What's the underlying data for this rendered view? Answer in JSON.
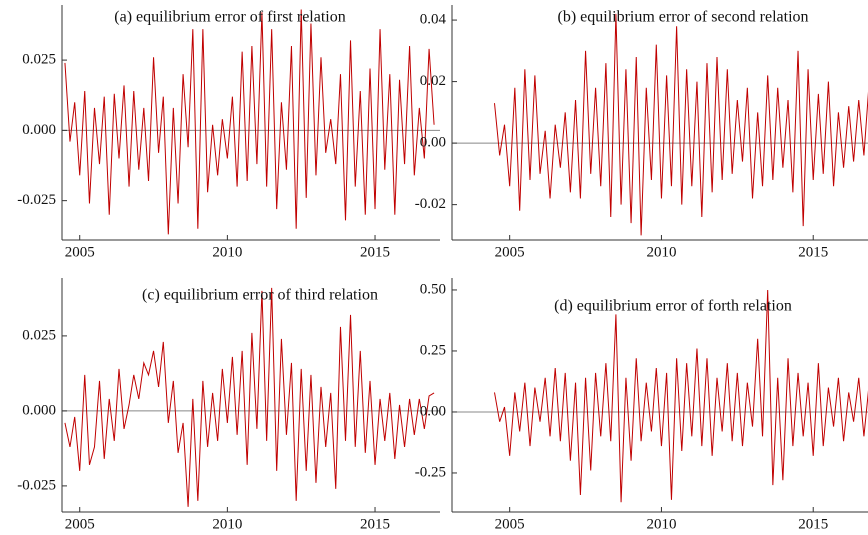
{
  "chart_data": [
    {
      "type": "line",
      "title": "(a) equilibrium error of first relation",
      "color": "#c00000",
      "zero_line": true,
      "xlim": [
        2004.4,
        2017.2
      ],
      "xticks": [
        2005,
        2010,
        2015
      ],
      "ylim": [
        -0.039,
        0.0446
      ],
      "yticks": [
        {
          "value": -0.025,
          "label": "-0.025"
        },
        {
          "value": 0,
          "label": "0.000"
        },
        {
          "value": 0.025,
          "label": "0.025"
        }
      ],
      "x": [
        2004.5,
        2004.67,
        2004.83,
        2005,
        2005.17,
        2005.33,
        2005.5,
        2005.67,
        2005.83,
        2006,
        2006.17,
        2006.33,
        2006.5,
        2006.67,
        2006.83,
        2007,
        2007.17,
        2007.33,
        2007.5,
        2007.67,
        2007.83,
        2008,
        2008.17,
        2008.33,
        2008.5,
        2008.67,
        2008.83,
        2009,
        2009.17,
        2009.33,
        2009.5,
        2009.67,
        2009.83,
        2010,
        2010.17,
        2010.33,
        2010.5,
        2010.67,
        2010.83,
        2011,
        2011.17,
        2011.33,
        2011.5,
        2011.67,
        2011.83,
        2012,
        2012.17,
        2012.33,
        2012.5,
        2012.67,
        2012.83,
        2013,
        2013.17,
        2013.33,
        2013.5,
        2013.67,
        2013.83,
        2014,
        2014.17,
        2014.33,
        2014.5,
        2014.67,
        2014.83,
        2015,
        2015.17,
        2015.33,
        2015.5,
        2015.67,
        2015.83,
        2016,
        2016.17,
        2016.33,
        2016.5,
        2016.67,
        2016.83,
        2017
      ],
      "values": [
        0.024,
        -0.004,
        0.01,
        -0.016,
        0.014,
        -0.026,
        0.008,
        -0.012,
        0.012,
        -0.03,
        0.013,
        -0.01,
        0.016,
        -0.02,
        0.014,
        -0.014,
        0.008,
        -0.018,
        0.026,
        -0.008,
        0.012,
        -0.037,
        0.008,
        -0.026,
        0.02,
        -0.006,
        0.036,
        -0.035,
        0.036,
        -0.022,
        0.002,
        -0.016,
        0.004,
        -0.01,
        0.012,
        -0.02,
        0.028,
        -0.018,
        0.03,
        -0.012,
        0.042,
        -0.02,
        0.036,
        -0.028,
        0.01,
        -0.014,
        0.03,
        -0.035,
        0.043,
        -0.024,
        0.038,
        -0.016,
        0.026,
        -0.008,
        0.004,
        -0.012,
        0.02,
        -0.032,
        0.032,
        -0.02,
        0.014,
        -0.03,
        0.022,
        -0.028,
        0.036,
        -0.014,
        0.02,
        -0.03,
        0.018,
        -0.012,
        0.03,
        -0.016,
        0.008,
        -0.01,
        0.029,
        0.002
      ]
    },
    {
      "type": "line",
      "title": "(b) equilibrium error of second relation",
      "color": "#c00000",
      "zero_line": true,
      "xlim": [
        2003.1,
        2017.2
      ],
      "xticks": [
        2005,
        2010,
        2015
      ],
      "ylim": [
        -0.0315,
        0.0449
      ],
      "yticks": [
        {
          "value": -0.02,
          "label": "-0.02"
        },
        {
          "value": 0,
          "label": "0.00"
        },
        {
          "value": 0.02,
          "label": "0.02"
        },
        {
          "value": 0.04,
          "label": "0.04"
        }
      ],
      "x": [
        2004.5,
        2004.67,
        2004.83,
        2005,
        2005.17,
        2005.33,
        2005.5,
        2005.67,
        2005.83,
        2006,
        2006.17,
        2006.33,
        2006.5,
        2006.67,
        2006.83,
        2007,
        2007.17,
        2007.33,
        2007.5,
        2007.67,
        2007.83,
        2008,
        2008.17,
        2008.33,
        2008.5,
        2008.67,
        2008.83,
        2009,
        2009.17,
        2009.33,
        2009.5,
        2009.67,
        2009.83,
        2010,
        2010.17,
        2010.33,
        2010.5,
        2010.67,
        2010.83,
        2011,
        2011.17,
        2011.33,
        2011.5,
        2011.67,
        2011.83,
        2012,
        2012.17,
        2012.33,
        2012.5,
        2012.67,
        2012.83,
        2013,
        2013.17,
        2013.33,
        2013.5,
        2013.67,
        2013.83,
        2014,
        2014.17,
        2014.33,
        2014.5,
        2014.67,
        2014.83,
        2015,
        2015.17,
        2015.33,
        2015.5,
        2015.67,
        2015.83,
        2016,
        2016.17,
        2016.33,
        2016.5,
        2016.67,
        2016.83,
        2017
      ],
      "values": [
        0.013,
        -0.004,
        0.006,
        -0.014,
        0.018,
        -0.022,
        0.024,
        -0.012,
        0.022,
        -0.01,
        0.004,
        -0.018,
        0.006,
        -0.008,
        0.01,
        -0.016,
        0.014,
        -0.018,
        0.03,
        -0.01,
        0.018,
        -0.014,
        0.026,
        -0.024,
        0.042,
        -0.02,
        0.024,
        -0.026,
        0.028,
        -0.03,
        0.018,
        -0.012,
        0.032,
        -0.018,
        0.022,
        -0.014,
        0.038,
        -0.02,
        0.024,
        -0.014,
        0.02,
        -0.024,
        0.026,
        -0.016,
        0.028,
        -0.012,
        0.024,
        -0.01,
        0.014,
        -0.006,
        0.018,
        -0.018,
        0.01,
        -0.014,
        0.022,
        -0.012,
        0.018,
        -0.008,
        0.014,
        -0.016,
        0.03,
        -0.027,
        0.024,
        -0.012,
        0.016,
        -0.01,
        0.02,
        -0.014,
        0.01,
        -0.008,
        0.012,
        -0.006,
        0.014,
        -0.004,
        0.018,
        0.002
      ]
    },
    {
      "type": "line",
      "title": "(c) equilibrium error of third relation",
      "color": "#c00000",
      "zero_line": true,
      "xlim": [
        2004.4,
        2017.2
      ],
      "xticks": [
        2005,
        2010,
        2015
      ],
      "ylim": [
        -0.0337,
        0.0443
      ],
      "yticks": [
        {
          "value": -0.025,
          "label": "-0.025"
        },
        {
          "value": 0,
          "label": "0.000"
        },
        {
          "value": 0.025,
          "label": "0.025"
        }
      ],
      "x": [
        2004.5,
        2004.67,
        2004.83,
        2005,
        2005.17,
        2005.33,
        2005.5,
        2005.67,
        2005.83,
        2006,
        2006.17,
        2006.33,
        2006.5,
        2006.67,
        2006.83,
        2007,
        2007.17,
        2007.33,
        2007.5,
        2007.67,
        2007.83,
        2008,
        2008.17,
        2008.33,
        2008.5,
        2008.67,
        2008.83,
        2009,
        2009.17,
        2009.33,
        2009.5,
        2009.67,
        2009.83,
        2010,
        2010.17,
        2010.33,
        2010.5,
        2010.67,
        2010.83,
        2011,
        2011.17,
        2011.33,
        2011.5,
        2011.67,
        2011.83,
        2012,
        2012.17,
        2012.33,
        2012.5,
        2012.67,
        2012.83,
        2013,
        2013.17,
        2013.33,
        2013.5,
        2013.67,
        2013.83,
        2014,
        2014.17,
        2014.33,
        2014.5,
        2014.67,
        2014.83,
        2015,
        2015.17,
        2015.33,
        2015.5,
        2015.67,
        2015.83,
        2016,
        2016.17,
        2016.33,
        2016.5,
        2016.67,
        2016.83,
        2017
      ],
      "values": [
        -0.004,
        -0.012,
        -0.002,
        -0.02,
        0.012,
        -0.018,
        -0.012,
        0.01,
        -0.016,
        0.004,
        -0.01,
        0.014,
        -0.006,
        0.002,
        0.012,
        0.004,
        0.016,
        0.012,
        0.02,
        0.008,
        0.023,
        -0.004,
        0.01,
        -0.014,
        -0.004,
        -0.032,
        0.004,
        -0.03,
        0.01,
        -0.012,
        0.006,
        -0.01,
        0.014,
        -0.004,
        0.018,
        -0.008,
        0.02,
        -0.018,
        0.026,
        -0.006,
        0.04,
        -0.01,
        0.041,
        -0.02,
        0.024,
        -0.008,
        0.016,
        -0.03,
        0.014,
        -0.02,
        0.012,
        -0.024,
        0.008,
        -0.012,
        0.006,
        -0.026,
        0.028,
        -0.01,
        0.032,
        -0.012,
        0.02,
        -0.014,
        0.01,
        -0.018,
        0.004,
        -0.01,
        0.006,
        -0.016,
        0.002,
        -0.012,
        0.004,
        -0.008,
        0.004,
        -0.006,
        0.005,
        0.006
      ]
    },
    {
      "type": "line",
      "title": "(d) equilibrium error of forth relation",
      "color": "#c00000",
      "zero_line": true,
      "xlim": [
        2003.1,
        2017.2
      ],
      "xticks": [
        2005,
        2010,
        2015
      ],
      "ylim": [
        -0.41,
        0.549
      ],
      "yticks": [
        {
          "value": -0.25,
          "label": "-0.25"
        },
        {
          "value": 0,
          "label": "0.00"
        },
        {
          "value": 0.25,
          "label": "0.25"
        },
        {
          "value": 0.5,
          "label": "0.50"
        }
      ],
      "x": [
        2004.5,
        2004.67,
        2004.83,
        2005,
        2005.17,
        2005.33,
        2005.5,
        2005.67,
        2005.83,
        2006,
        2006.17,
        2006.33,
        2006.5,
        2006.67,
        2006.83,
        2007,
        2007.17,
        2007.33,
        2007.5,
        2007.67,
        2007.83,
        2008,
        2008.17,
        2008.33,
        2008.5,
        2008.67,
        2008.83,
        2009,
        2009.17,
        2009.33,
        2009.5,
        2009.67,
        2009.83,
        2010,
        2010.17,
        2010.33,
        2010.5,
        2010.67,
        2010.83,
        2011,
        2011.17,
        2011.33,
        2011.5,
        2011.67,
        2011.83,
        2012,
        2012.17,
        2012.33,
        2012.5,
        2012.67,
        2012.83,
        2013,
        2013.17,
        2013.33,
        2013.5,
        2013.67,
        2013.83,
        2014,
        2014.17,
        2014.33,
        2014.5,
        2014.67,
        2014.83,
        2015,
        2015.17,
        2015.33,
        2015.5,
        2015.67,
        2015.83,
        2016,
        2016.17,
        2016.33,
        2016.5,
        2016.67,
        2016.83,
        2017
      ],
      "values": [
        0.08,
        -0.04,
        0.02,
        -0.18,
        0.08,
        -0.08,
        0.12,
        -0.14,
        0.1,
        -0.04,
        0.14,
        -0.1,
        0.18,
        -0.12,
        0.16,
        -0.2,
        0.12,
        -0.34,
        0.14,
        -0.24,
        0.16,
        -0.1,
        0.2,
        -0.12,
        0.4,
        -0.37,
        0.14,
        -0.2,
        0.22,
        -0.12,
        0.12,
        -0.08,
        0.18,
        -0.14,
        0.16,
        -0.36,
        0.22,
        -0.16,
        0.2,
        -0.1,
        0.26,
        -0.14,
        0.22,
        -0.18,
        0.14,
        -0.08,
        0.2,
        -0.12,
        0.16,
        -0.14,
        0.12,
        -0.06,
        0.3,
        -0.1,
        0.5,
        -0.3,
        0.14,
        -0.28,
        0.22,
        -0.14,
        0.16,
        -0.1,
        0.12,
        -0.18,
        0.2,
        -0.14,
        0.1,
        -0.06,
        0.14,
        -0.12,
        0.08,
        -0.04,
        0.14,
        -0.1,
        0.1,
        -0.08
      ]
    }
  ]
}
